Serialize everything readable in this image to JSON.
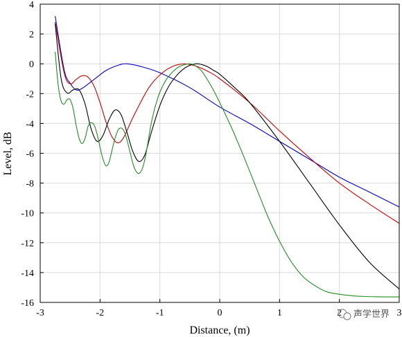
{
  "chart_data": {
    "type": "line",
    "title": "",
    "xlabel": "Distance, (m)",
    "ylabel": "Level, dB",
    "xlim": [
      -3,
      3
    ],
    "ylim": [
      -16,
      4
    ],
    "xticks": [
      -3,
      -2,
      -1,
      0,
      1,
      2,
      3
    ],
    "yticks": [
      4,
      2,
      0,
      -2,
      -4,
      -6,
      -8,
      -10,
      -12,
      -14,
      -16
    ],
    "grid": true,
    "series": [
      {
        "color": "#0000cc",
        "x": [
          -2.75,
          -2.6,
          -2.5,
          -2.4,
          -2.3,
          -2.1,
          -1.9,
          -1.7,
          -1.55,
          -1.3,
          -1.0,
          -0.5,
          0.0,
          0.5,
          1.0,
          1.5,
          2.0,
          2.5,
          3.0
        ],
        "y": [
          3.2,
          -0.4,
          -1.3,
          -1.75,
          -1.65,
          -1.05,
          -0.45,
          -0.1,
          0.0,
          -0.2,
          -0.6,
          -1.6,
          -2.9,
          -4.0,
          -5.2,
          -6.4,
          -7.6,
          -8.6,
          -9.6
        ]
      },
      {
        "color": "#cc0000",
        "x": [
          -2.75,
          -2.6,
          -2.5,
          -2.4,
          -2.3,
          -2.2,
          -2.1,
          -2.0,
          -1.9,
          -1.8,
          -1.7,
          -1.6,
          -1.45,
          -1.2,
          -1.0,
          -0.8,
          -0.6,
          -0.4,
          -0.2,
          0.0,
          0.5,
          1.0,
          1.5,
          2.0,
          2.5,
          3.0
        ],
        "y": [
          2.8,
          -0.6,
          -1.35,
          -1.05,
          -0.8,
          -0.9,
          -1.5,
          -2.6,
          -3.9,
          -4.9,
          -5.3,
          -4.9,
          -3.6,
          -1.7,
          -0.75,
          -0.2,
          0.0,
          -0.15,
          -0.5,
          -1.0,
          -2.6,
          -4.5,
          -6.3,
          -8.0,
          -9.4,
          -10.7
        ]
      },
      {
        "color": "#000000",
        "x": [
          -2.75,
          -2.65,
          -2.55,
          -2.45,
          -2.35,
          -2.25,
          -2.15,
          -2.05,
          -1.95,
          -1.85,
          -1.75,
          -1.65,
          -1.55,
          -1.45,
          -1.35,
          -1.25,
          -1.15,
          -1.0,
          -0.85,
          -0.7,
          -0.55,
          -0.4,
          -0.3,
          -0.2,
          -0.1,
          0.0,
          0.25,
          0.5,
          1.0,
          1.5,
          2.0,
          2.5,
          3.0
        ],
        "y": [
          2.7,
          -1.0,
          -1.95,
          -1.75,
          -1.75,
          -2.7,
          -4.35,
          -5.2,
          -4.8,
          -3.75,
          -3.1,
          -3.4,
          -4.6,
          -5.9,
          -6.55,
          -6.1,
          -4.7,
          -2.8,
          -1.5,
          -0.7,
          -0.2,
          0.0,
          -0.05,
          -0.2,
          -0.45,
          -0.7,
          -1.6,
          -2.6,
          -5.2,
          -8.0,
          -10.8,
          -13.3,
          -15.1
        ]
      },
      {
        "color": "#228b22",
        "x": [
          -2.75,
          -2.7,
          -2.65,
          -2.6,
          -2.55,
          -2.5,
          -2.45,
          -2.4,
          -2.35,
          -2.3,
          -2.25,
          -2.2,
          -2.15,
          -2.1,
          -2.05,
          -2.0,
          -1.95,
          -1.9,
          -1.85,
          -1.8,
          -1.75,
          -1.7,
          -1.65,
          -1.6,
          -1.55,
          -1.5,
          -1.45,
          -1.4,
          -1.35,
          -1.3,
          -1.25,
          -1.2,
          -1.15,
          -1.1,
          -1.05,
          -1.0,
          -0.9,
          -0.8,
          -0.7,
          -0.6,
          -0.5,
          -0.4,
          -0.3,
          -0.2,
          -0.1,
          0.0,
          0.2,
          0.4,
          0.6,
          0.8,
          1.0,
          1.2,
          1.4,
          1.6,
          1.8,
          2.0,
          2.2,
          2.4,
          2.6,
          2.8,
          3.0
        ],
        "y": [
          0.8,
          -1.4,
          -2.5,
          -2.7,
          -2.4,
          -2.4,
          -3.0,
          -4.1,
          -5.0,
          -5.35,
          -5.0,
          -4.2,
          -3.95,
          -4.1,
          -4.7,
          -5.6,
          -6.4,
          -6.85,
          -6.6,
          -5.8,
          -5.0,
          -4.45,
          -4.3,
          -4.5,
          -5.1,
          -5.9,
          -6.7,
          -7.2,
          -7.35,
          -7.1,
          -6.4,
          -5.3,
          -4.1,
          -3.2,
          -2.5,
          -1.9,
          -1.1,
          -0.6,
          -0.25,
          -0.07,
          0.0,
          -0.15,
          -0.5,
          -1.1,
          -1.8,
          -2.6,
          -4.3,
          -6.2,
          -8.2,
          -10.2,
          -11.9,
          -13.3,
          -14.3,
          -14.9,
          -15.3,
          -15.45,
          -15.55,
          -15.6,
          -15.62,
          -15.63,
          -15.63
        ]
      }
    ]
  },
  "watermark": "声学世界"
}
